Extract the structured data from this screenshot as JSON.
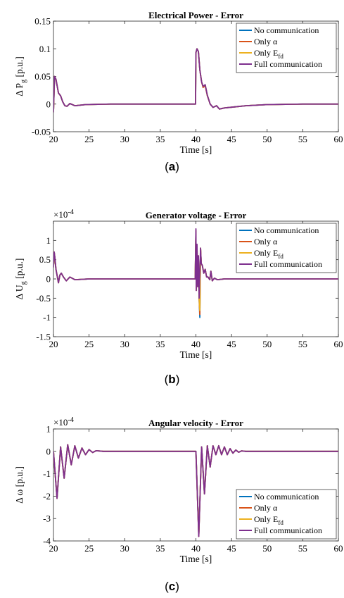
{
  "legend": [
    "No communication",
    "Only α",
    "Only E_fd",
    "Full communication"
  ],
  "colors": [
    "#0072BD",
    "#D95319",
    "#EDB120",
    "#7E2F8E"
  ],
  "chart_data": [
    {
      "type": "line",
      "id": "a",
      "caption_letter": "a",
      "title": "Electrical Power - Error",
      "xlabel": "Time [s]",
      "ylabel": "Δ P_g [p.u.]",
      "xlim": [
        20,
        60
      ],
      "ylim": [
        -0.05,
        0.15
      ],
      "xticks": [
        20,
        25,
        30,
        35,
        40,
        45,
        50,
        55,
        60
      ],
      "yticks": [
        -0.05,
        0,
        0.05,
        0.1,
        0.15
      ],
      "ytick_labels": [
        "-0.05",
        "0",
        "0.05",
        "0.1",
        "0.15"
      ],
      "exponent": "",
      "legend_position": "top-right",
      "series": [
        {
          "name": "No communication",
          "x": [
            20,
            20.15,
            20.35,
            20.7,
            21,
            21.3,
            21.6,
            21.9,
            22.3,
            23,
            24.5,
            28,
            39.95,
            40.0,
            40.15,
            40.35,
            40.55,
            40.8,
            41.0,
            41.3,
            41.6,
            42.0,
            42.4,
            42.9,
            43.3,
            44,
            45.5,
            47,
            50,
            55,
            60
          ],
          "y": [
            -0.015,
            0.05,
            0.045,
            0.02,
            0.015,
            0.004,
            -0.003,
            -0.004,
            0.001,
            -0.003,
            -0.001,
            0.0,
            0.0,
            0.093,
            0.1,
            0.095,
            0.062,
            0.04,
            0.032,
            0.035,
            0.016,
            0.0,
            -0.006,
            -0.003,
            -0.009,
            -0.007,
            -0.005,
            -0.003,
            -0.001,
            0.0,
            0.0
          ]
        },
        {
          "name": "Only α",
          "x": [
            20,
            20.15,
            20.35,
            20.7,
            21,
            21.3,
            21.6,
            21.9,
            22.3,
            23,
            24.5,
            28,
            39.95,
            40.0,
            40.15,
            40.35,
            40.55,
            40.8,
            41.0,
            41.3,
            41.6,
            42.0,
            42.4,
            42.9,
            43.3,
            44,
            45.5,
            47,
            50,
            55,
            60
          ],
          "y": [
            -0.015,
            0.05,
            0.045,
            0.02,
            0.015,
            0.004,
            -0.003,
            -0.004,
            0.001,
            -0.003,
            -0.001,
            0.0,
            0.0,
            0.093,
            0.1,
            0.095,
            0.062,
            0.04,
            0.03,
            0.033,
            0.015,
            0.0,
            -0.006,
            -0.003,
            -0.009,
            -0.007,
            -0.005,
            -0.003,
            -0.001,
            0.0,
            0.0
          ]
        },
        {
          "name": "Only E_fd",
          "x": [
            20,
            20.15,
            20.35,
            20.7,
            21,
            21.3,
            21.6,
            21.9,
            22.3,
            23,
            24.5,
            28,
            39.95,
            40.0,
            40.15,
            40.35,
            40.55,
            40.8,
            41.0,
            41.3,
            41.6,
            42.0,
            42.4,
            42.9,
            43.3,
            44,
            45.5,
            47,
            50,
            55,
            60
          ],
          "y": [
            -0.015,
            0.05,
            0.045,
            0.02,
            0.015,
            0.004,
            -0.003,
            -0.004,
            0.001,
            -0.003,
            -0.001,
            0.0,
            0.0,
            0.093,
            0.1,
            0.095,
            0.062,
            0.04,
            0.032,
            0.035,
            0.016,
            0.0,
            -0.006,
            -0.003,
            -0.009,
            -0.007,
            -0.005,
            -0.003,
            -0.001,
            0.0,
            0.0
          ]
        },
        {
          "name": "Full communication",
          "x": [
            20,
            20.15,
            20.35,
            20.7,
            21,
            21.3,
            21.6,
            21.9,
            22.3,
            23,
            24.5,
            28,
            39.95,
            40.0,
            40.15,
            40.35,
            40.55,
            40.8,
            41.0,
            41.3,
            41.6,
            42.0,
            42.4,
            42.9,
            43.3,
            44,
            45.5,
            47,
            50,
            55,
            60
          ],
          "y": [
            -0.015,
            0.05,
            0.045,
            0.02,
            0.015,
            0.004,
            -0.003,
            -0.004,
            0.001,
            -0.003,
            -0.001,
            0.0,
            0.0,
            0.093,
            0.1,
            0.095,
            0.062,
            0.04,
            0.032,
            0.035,
            0.016,
            0.0,
            -0.006,
            -0.003,
            -0.009,
            -0.007,
            -0.005,
            -0.003,
            -0.001,
            0.0,
            0.0
          ]
        }
      ]
    },
    {
      "type": "line",
      "id": "b",
      "caption_letter": "b",
      "title": "Generator voltage - Error",
      "xlabel": "Time [s]",
      "ylabel": "Δ U_g [p.u.]",
      "xlim": [
        20,
        60
      ],
      "ylim": [
        -1.5,
        1.5
      ],
      "xticks": [
        20,
        25,
        30,
        35,
        40,
        45,
        50,
        55,
        60
      ],
      "yticks": [
        -1.5,
        -1,
        -0.5,
        0,
        0.5,
        1
      ],
      "ytick_labels": [
        "-1.5",
        "-1",
        "-0.5",
        "0",
        "0.5",
        "1"
      ],
      "exponent": "×10^-4",
      "legend_position": "top-right",
      "series": [
        {
          "name": "No communication",
          "x": [
            20,
            20.1,
            20.2,
            20.35,
            20.5,
            20.7,
            20.9,
            21.1,
            21.4,
            21.8,
            22.3,
            23,
            25,
            30,
            39.9,
            40.0,
            40.05,
            40.15,
            40.25,
            40.35,
            40.45,
            40.55,
            40.65,
            40.75,
            40.9,
            41.1,
            41.3,
            41.5,
            41.7,
            41.95,
            42.1,
            42.3,
            42.6,
            43,
            44,
            46,
            50,
            60
          ],
          "y": [
            0.3,
            0.7,
            0.55,
            0.25,
            0.1,
            -0.1,
            0.1,
            0.15,
            0.05,
            -0.05,
            0.05,
            -0.02,
            0.0,
            0.0,
            0.0,
            1.2,
            -0.3,
            0.8,
            -0.2,
            0.6,
            -0.5,
            -1.0,
            0.8,
            0.4,
            0.35,
            0.15,
            0.25,
            0.05,
            0.05,
            -0.02,
            0.2,
            -0.05,
            0.02,
            -0.02,
            0.0,
            0.0,
            0.0,
            0.0
          ]
        },
        {
          "name": "Only α",
          "x": [
            20,
            20.1,
            20.2,
            20.35,
            20.5,
            20.7,
            20.9,
            21.1,
            21.4,
            21.8,
            22.3,
            23,
            25,
            30,
            39.9,
            40.0,
            40.05,
            40.15,
            40.25,
            40.35,
            40.45,
            40.55,
            40.65,
            40.75,
            40.9,
            41.1,
            41.3,
            41.5,
            41.7,
            41.95,
            42.1,
            42.3,
            42.6,
            43,
            44,
            46,
            50,
            60
          ],
          "y": [
            0.3,
            0.7,
            0.55,
            0.25,
            0.1,
            -0.1,
            0.1,
            0.15,
            0.05,
            -0.05,
            0.05,
            -0.02,
            0.0,
            0.0,
            0.0,
            1.25,
            -0.3,
            0.85,
            -0.2,
            0.6,
            -0.5,
            -0.92,
            0.8,
            0.4,
            0.35,
            0.15,
            0.25,
            0.05,
            0.05,
            -0.02,
            0.2,
            -0.05,
            0.02,
            -0.02,
            0.0,
            0.0,
            0.0,
            0.0
          ]
        },
        {
          "name": "Only E_fd",
          "x": [
            20,
            20.1,
            20.2,
            20.35,
            20.5,
            20.7,
            20.9,
            21.1,
            21.4,
            21.8,
            22.3,
            23,
            25,
            30,
            39.9,
            40.0,
            40.05,
            40.15,
            40.25,
            40.35,
            40.45,
            40.55,
            40.65,
            40.75,
            40.9,
            41.1,
            41.3,
            41.5,
            41.7,
            41.95,
            42.1,
            42.3,
            42.6,
            43,
            44,
            46,
            50,
            60
          ],
          "y": [
            0.3,
            0.7,
            0.55,
            0.25,
            0.1,
            -0.1,
            0.1,
            0.15,
            0.05,
            -0.05,
            0.05,
            -0.02,
            0.0,
            0.0,
            0.0,
            1.25,
            -0.3,
            0.85,
            -0.2,
            0.6,
            -0.5,
            -0.82,
            0.8,
            0.4,
            0.35,
            0.15,
            0.25,
            0.05,
            0.05,
            -0.02,
            0.2,
            -0.05,
            0.02,
            -0.02,
            0.0,
            0.0,
            0.0,
            0.0
          ]
        },
        {
          "name": "Full communication",
          "x": [
            20,
            20.1,
            20.2,
            20.35,
            20.5,
            20.7,
            20.9,
            21.1,
            21.4,
            21.8,
            22.3,
            23,
            25,
            30,
            39.9,
            40.0,
            40.05,
            40.15,
            40.25,
            40.35,
            40.45,
            40.55,
            40.65,
            40.75,
            40.9,
            41.1,
            41.3,
            41.5,
            41.7,
            41.95,
            42.1,
            42.3,
            42.6,
            43,
            44,
            46,
            50,
            60
          ],
          "y": [
            0.3,
            0.7,
            0.55,
            0.25,
            0.1,
            -0.1,
            0.1,
            0.15,
            0.05,
            -0.05,
            0.05,
            -0.02,
            0.0,
            0.0,
            0.0,
            1.3,
            -0.3,
            0.9,
            -0.2,
            0.6,
            -0.5,
            0.2,
            0.8,
            0.4,
            0.35,
            0.15,
            0.25,
            0.05,
            0.05,
            -0.02,
            0.2,
            -0.05,
            0.02,
            -0.02,
            0.0,
            0.0,
            0.0,
            0.0
          ]
        }
      ]
    },
    {
      "type": "line",
      "id": "c",
      "caption_letter": "c",
      "title": "Angular velocity - Error",
      "xlabel": "Time [s]",
      "ylabel": "Δ ω [p.u.]",
      "xlim": [
        20,
        60
      ],
      "ylim": [
        -4,
        1
      ],
      "xticks": [
        20,
        25,
        30,
        35,
        40,
        45,
        50,
        55,
        60
      ],
      "yticks": [
        -4,
        -3,
        -2,
        -1,
        0,
        1
      ],
      "ytick_labels": [
        "-4",
        "-3",
        "-2",
        "-1",
        "0",
        "1"
      ],
      "exponent": "×10^-4",
      "legend_position": "bottom-right",
      "series": [
        {
          "name": "No communication",
          "x": [
            20,
            20.5,
            21.0,
            21.5,
            22.0,
            22.5,
            23.0,
            23.5,
            24.0,
            24.5,
            25.0,
            25.5,
            26.0,
            27.0,
            28,
            39.9,
            40.0,
            40.4,
            40.8,
            41.2,
            41.6,
            42.0,
            42.4,
            42.8,
            43.2,
            43.6,
            44.0,
            44.4,
            44.8,
            45.2,
            45.6,
            46.0,
            46.4,
            47.0,
            48.0,
            50,
            60
          ],
          "y": [
            0.0,
            -2.1,
            0.2,
            -1.2,
            0.3,
            -0.6,
            0.25,
            -0.3,
            0.15,
            -0.15,
            0.08,
            -0.05,
            0.03,
            0.0,
            0.0,
            0.0,
            0.0,
            -3.75,
            0.2,
            -1.9,
            0.25,
            -0.7,
            0.25,
            -0.15,
            0.25,
            -0.15,
            0.2,
            -0.15,
            0.12,
            -0.08,
            0.06,
            -0.04,
            0.02,
            0.0,
            0.0,
            0.0,
            0.0
          ]
        },
        {
          "name": "Only α",
          "x": [
            20,
            20.5,
            21.0,
            21.5,
            22.0,
            22.5,
            23.0,
            23.5,
            24.0,
            24.5,
            25.0,
            25.5,
            26.0,
            27.0,
            28,
            39.9,
            40.0,
            40.4,
            40.8,
            41.2,
            41.6,
            42.0,
            42.4,
            42.8,
            43.2,
            43.6,
            44.0,
            44.4,
            44.8,
            45.2,
            45.6,
            46.0,
            46.4,
            47.0,
            48.0,
            50,
            60
          ],
          "y": [
            0.0,
            -2.1,
            0.2,
            -1.2,
            0.3,
            -0.6,
            0.25,
            -0.3,
            0.15,
            -0.15,
            0.08,
            -0.05,
            0.03,
            0.0,
            0.0,
            0.0,
            0.0,
            -3.8,
            0.2,
            -1.9,
            0.25,
            -0.7,
            0.25,
            -0.15,
            0.25,
            -0.15,
            0.2,
            -0.15,
            0.12,
            -0.08,
            0.06,
            -0.04,
            0.02,
            0.0,
            0.0,
            0.0,
            0.0
          ]
        },
        {
          "name": "Only E_fd",
          "x": [
            20,
            20.5,
            21.0,
            21.5,
            22.0,
            22.5,
            23.0,
            23.5,
            24.0,
            24.5,
            25.0,
            25.5,
            26.0,
            27.0,
            28,
            39.9,
            40.0,
            40.4,
            40.8,
            41.2,
            41.6,
            42.0,
            42.4,
            42.8,
            43.2,
            43.6,
            44.0,
            44.4,
            44.8,
            45.2,
            45.6,
            46.0,
            46.4,
            47.0,
            48.0,
            50,
            60
          ],
          "y": [
            0.0,
            -2.1,
            0.2,
            -1.2,
            0.3,
            -0.6,
            0.25,
            -0.3,
            0.15,
            -0.15,
            0.08,
            -0.05,
            0.03,
            0.0,
            0.0,
            0.0,
            0.0,
            -3.75,
            0.2,
            -1.9,
            0.25,
            -0.7,
            0.25,
            -0.15,
            0.25,
            -0.15,
            0.2,
            -0.15,
            0.12,
            -0.08,
            0.06,
            -0.04,
            0.02,
            0.0,
            0.0,
            0.0,
            0.0
          ]
        },
        {
          "name": "Full communication",
          "x": [
            20,
            20.5,
            21.0,
            21.5,
            22.0,
            22.5,
            23.0,
            23.5,
            24.0,
            24.5,
            25.0,
            25.5,
            26.0,
            27.0,
            28,
            39.9,
            40.0,
            40.4,
            40.8,
            41.2,
            41.6,
            42.0,
            42.4,
            42.8,
            43.2,
            43.6,
            44.0,
            44.4,
            44.8,
            45.2,
            45.6,
            46.0,
            46.4,
            47.0,
            48.0,
            50,
            60
          ],
          "y": [
            0.0,
            -2.1,
            0.2,
            -1.2,
            0.3,
            -0.6,
            0.25,
            -0.3,
            0.15,
            -0.15,
            0.08,
            -0.05,
            0.03,
            0.0,
            0.0,
            0.0,
            0.0,
            -3.8,
            0.2,
            -1.9,
            0.25,
            -0.7,
            0.25,
            -0.15,
            0.25,
            -0.15,
            0.2,
            -0.15,
            0.12,
            -0.08,
            0.06,
            -0.04,
            0.02,
            0.0,
            0.0,
            0.0,
            0.0
          ]
        }
      ]
    }
  ]
}
